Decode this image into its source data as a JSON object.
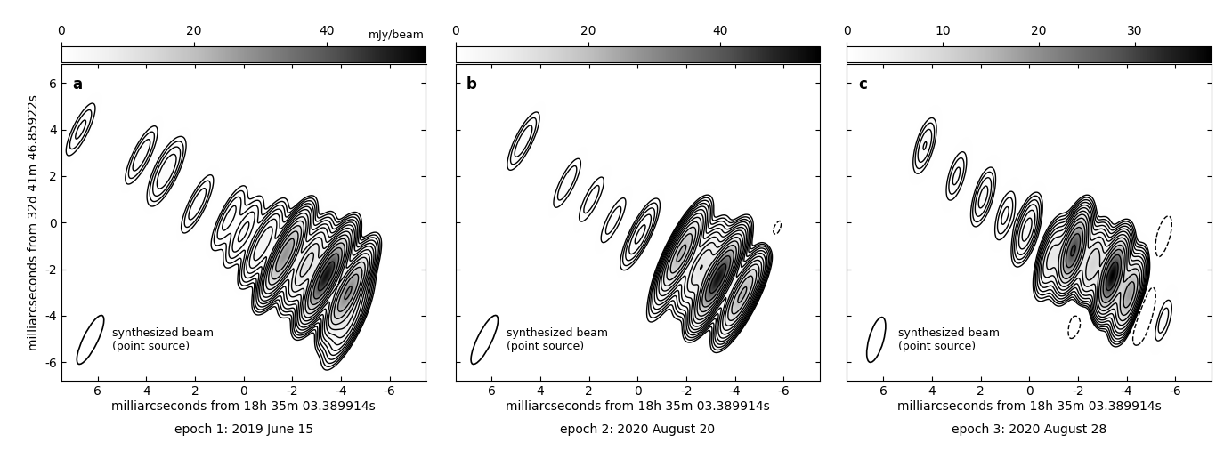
{
  "chart_data": [
    {
      "type": "contour",
      "panel_label": "a",
      "xlabel": "milliarcseconds from 18h 35m 03.389914s",
      "ylabel": "milliarcseconds from 32d 41m 46.85922s",
      "caption": "epoch 1: 2019 June 15",
      "beam_label": "synthesized beam\n(point source)",
      "xlim": [
        7.5,
        -7.5
      ],
      "ylim": [
        -6.8,
        6.8
      ],
      "xticks": [
        6,
        4,
        2,
        0,
        -2,
        -4,
        -6
      ],
      "yticks": [
        -6,
        -4,
        -2,
        0,
        2,
        4,
        6
      ],
      "colorbar": {
        "range": [
          0,
          55
        ],
        "ticks": [
          0,
          20,
          40
        ],
        "label": "mJy/beam"
      },
      "beam": {
        "major": 2.3,
        "minor": 0.6,
        "pa": -25
      },
      "contour_levels": [
        -0.45,
        0.45,
        0.64,
        0.9,
        1.27,
        1.8,
        2.5,
        3.6,
        5.1,
        7.2,
        10.2,
        14.4,
        20.4,
        28.8,
        40.7
      ],
      "components": [
        {
          "x": -3.4,
          "y": -2.3,
          "peak": 52
        },
        {
          "x": -4.3,
          "y": -3.0,
          "peak": 30
        },
        {
          "x": -1.7,
          "y": -1.4,
          "peak": 28
        },
        {
          "x": -2.6,
          "y": -1.8,
          "peak": 12
        },
        {
          "x": -0.8,
          "y": -0.9,
          "peak": 5
        },
        {
          "x": 0.0,
          "y": -0.4,
          "peak": 2
        },
        {
          "x": 0.6,
          "y": 0.2,
          "peak": 1.5
        },
        {
          "x": 1.9,
          "y": 0.8,
          "peak": 1.2
        },
        {
          "x": 3.1,
          "y": 2.1,
          "peak": 1.3
        },
        {
          "x": 4.2,
          "y": 2.9,
          "peak": 1.2
        },
        {
          "x": 3.3,
          "y": 2.4,
          "peak": 0.8
        },
        {
          "x": 6.7,
          "y": 4.0,
          "peak": 1.0
        },
        {
          "x": -4.3,
          "y": -4.3,
          "peak": 6
        }
      ]
    },
    {
      "type": "contour",
      "panel_label": "b",
      "xlabel": "milliarcseconds from 18h 35m 03.389914s",
      "caption": "epoch 2: 2020 August 20",
      "beam_label": "synthesized beam\n(point source)",
      "tick_labels": "x",
      "xlim": [
        7.5,
        -7.5
      ],
      "ylim": [
        -6.8,
        6.8
      ],
      "xticks": [
        6,
        4,
        2,
        0,
        -2,
        -4,
        -6
      ],
      "yticks": [
        -6,
        -4,
        -2,
        0,
        2,
        4,
        6
      ],
      "colorbar": {
        "range": [
          0,
          55
        ],
        "ticks": [
          0,
          20,
          40
        ]
      },
      "beam": {
        "major": 2.3,
        "minor": 0.6,
        "pa": -25
      },
      "contour_levels": [
        -0.45,
        0.45,
        0.64,
        0.9,
        1.27,
        1.8,
        2.5,
        3.6,
        5.1,
        7.2,
        10.2,
        14.4,
        20.4,
        28.8,
        40.7
      ],
      "components": [
        {
          "x": -3.3,
          "y": -2.4,
          "peak": 52
        },
        {
          "x": -4.3,
          "y": -3.1,
          "peak": 22
        },
        {
          "x": -1.8,
          "y": -1.3,
          "peak": 22
        },
        {
          "x": -2.6,
          "y": -1.9,
          "peak": 10
        },
        {
          "x": -0.1,
          "y": -0.5,
          "peak": 2
        },
        {
          "x": 1.0,
          "y": 0.1,
          "peak": 0.8
        },
        {
          "x": 1.9,
          "y": 1.0,
          "peak": 0.8
        },
        {
          "x": 2.9,
          "y": 1.7,
          "peak": 0.9
        },
        {
          "x": 4.7,
          "y": 3.5,
          "peak": 1.2
        },
        {
          "x": -5.5,
          "y": -0.7,
          "peak": -0.7
        },
        {
          "x": -1.1,
          "y": -3.0,
          "peak": 1.0
        }
      ]
    },
    {
      "type": "contour",
      "panel_label": "c",
      "xlabel": "milliarcseconds from 18h 35m 03.389914s",
      "caption": "epoch 3: 2020 August 28",
      "beam_label": "synthesized beam\n(point source)",
      "tick_labels": "x",
      "xlim": [
        7.5,
        -7.5
      ],
      "ylim": [
        -6.8,
        6.8
      ],
      "xticks": [
        6,
        4,
        2,
        0,
        -2,
        -4,
        -6
      ],
      "yticks": [
        -6,
        -4,
        -2,
        0,
        2,
        4,
        6
      ],
      "colorbar": {
        "range": [
          0,
          38
        ],
        "ticks": [
          0,
          10,
          20,
          30
        ]
      },
      "beam": {
        "major": 2.0,
        "minor": 0.6,
        "pa": -15
      },
      "contour_levels": [
        -0.45,
        0.45,
        0.64,
        0.9,
        1.27,
        1.8,
        2.5,
        3.6,
        5.1,
        7.2,
        10.2,
        14.4,
        20.4,
        28.8
      ],
      "components": [
        {
          "x": -3.4,
          "y": -2.3,
          "peak": 38
        },
        {
          "x": -4.1,
          "y": -3.1,
          "peak": 18
        },
        {
          "x": -1.8,
          "y": -1.2,
          "peak": 30
        },
        {
          "x": -2.6,
          "y": -1.8,
          "peak": 10
        },
        {
          "x": -0.9,
          "y": -1.5,
          "peak": 6
        },
        {
          "x": 0.1,
          "y": -0.3,
          "peak": 3
        },
        {
          "x": 1.0,
          "y": 0.3,
          "peak": 1.0
        },
        {
          "x": 1.9,
          "y": 1.1,
          "peak": 1.5
        },
        {
          "x": 3.0,
          "y": 2.0,
          "peak": 1.0
        },
        {
          "x": 4.3,
          "y": 3.3,
          "peak": 1.3
        },
        {
          "x": -5.5,
          "y": -0.6,
          "peak": -0.8
        },
        {
          "x": -4.7,
          "y": -4.0,
          "peak": -1.5
        },
        {
          "x": -1.9,
          "y": -4.2,
          "peak": -0.7
        },
        {
          "x": -2.6,
          "y": -4.5,
          "peak": -0.6
        },
        {
          "x": -5.5,
          "y": -4.2,
          "peak": 0.8
        }
      ]
    }
  ]
}
